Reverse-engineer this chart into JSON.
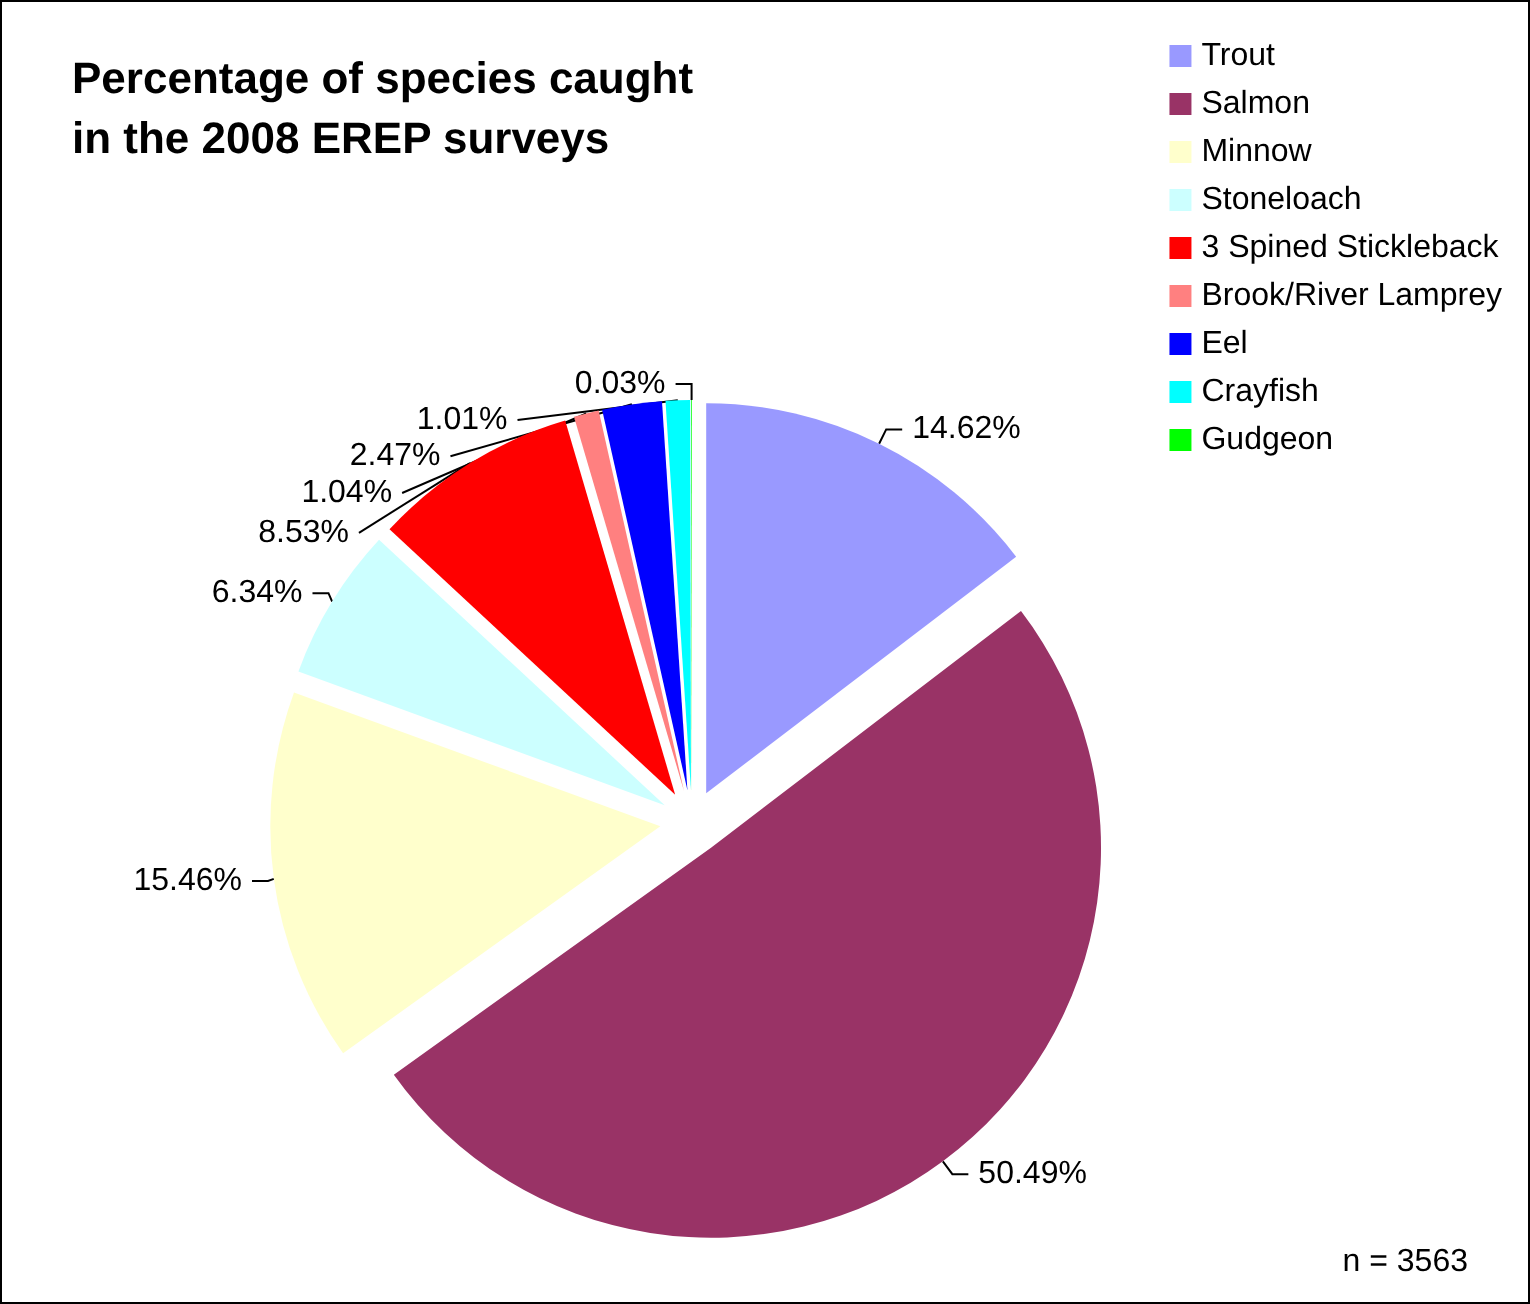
{
  "chart_data": {
    "type": "pie",
    "title": "Percentage of species caught in the 2008 EREP surveys",
    "categories": [
      "Trout",
      "Salmon",
      "Minnow",
      "Stoneloach",
      "3 Spined Stickleback",
      "Brook/River Lamprey",
      "Eel",
      "Crayfish",
      "Gudgeon"
    ],
    "values": [
      14.62,
      50.49,
      15.46,
      6.34,
      8.53,
      1.04,
      2.47,
      1.01,
      0.03
    ],
    "value_labels": [
      "14.62%",
      "50.49%",
      "15.46%",
      "6.34%",
      "8.53%",
      "1.04%",
      "2.47%",
      "1.01%",
      "0.03%"
    ],
    "colors": [
      "#9999ff",
      "#993366",
      "#ffffcc",
      "#ccffff",
      "#ff0000",
      "#ff8080",
      "#0000ff",
      "#00ffff",
      "#00ff00"
    ],
    "legend": "top right",
    "annotations": [
      "n = 3563"
    ]
  }
}
